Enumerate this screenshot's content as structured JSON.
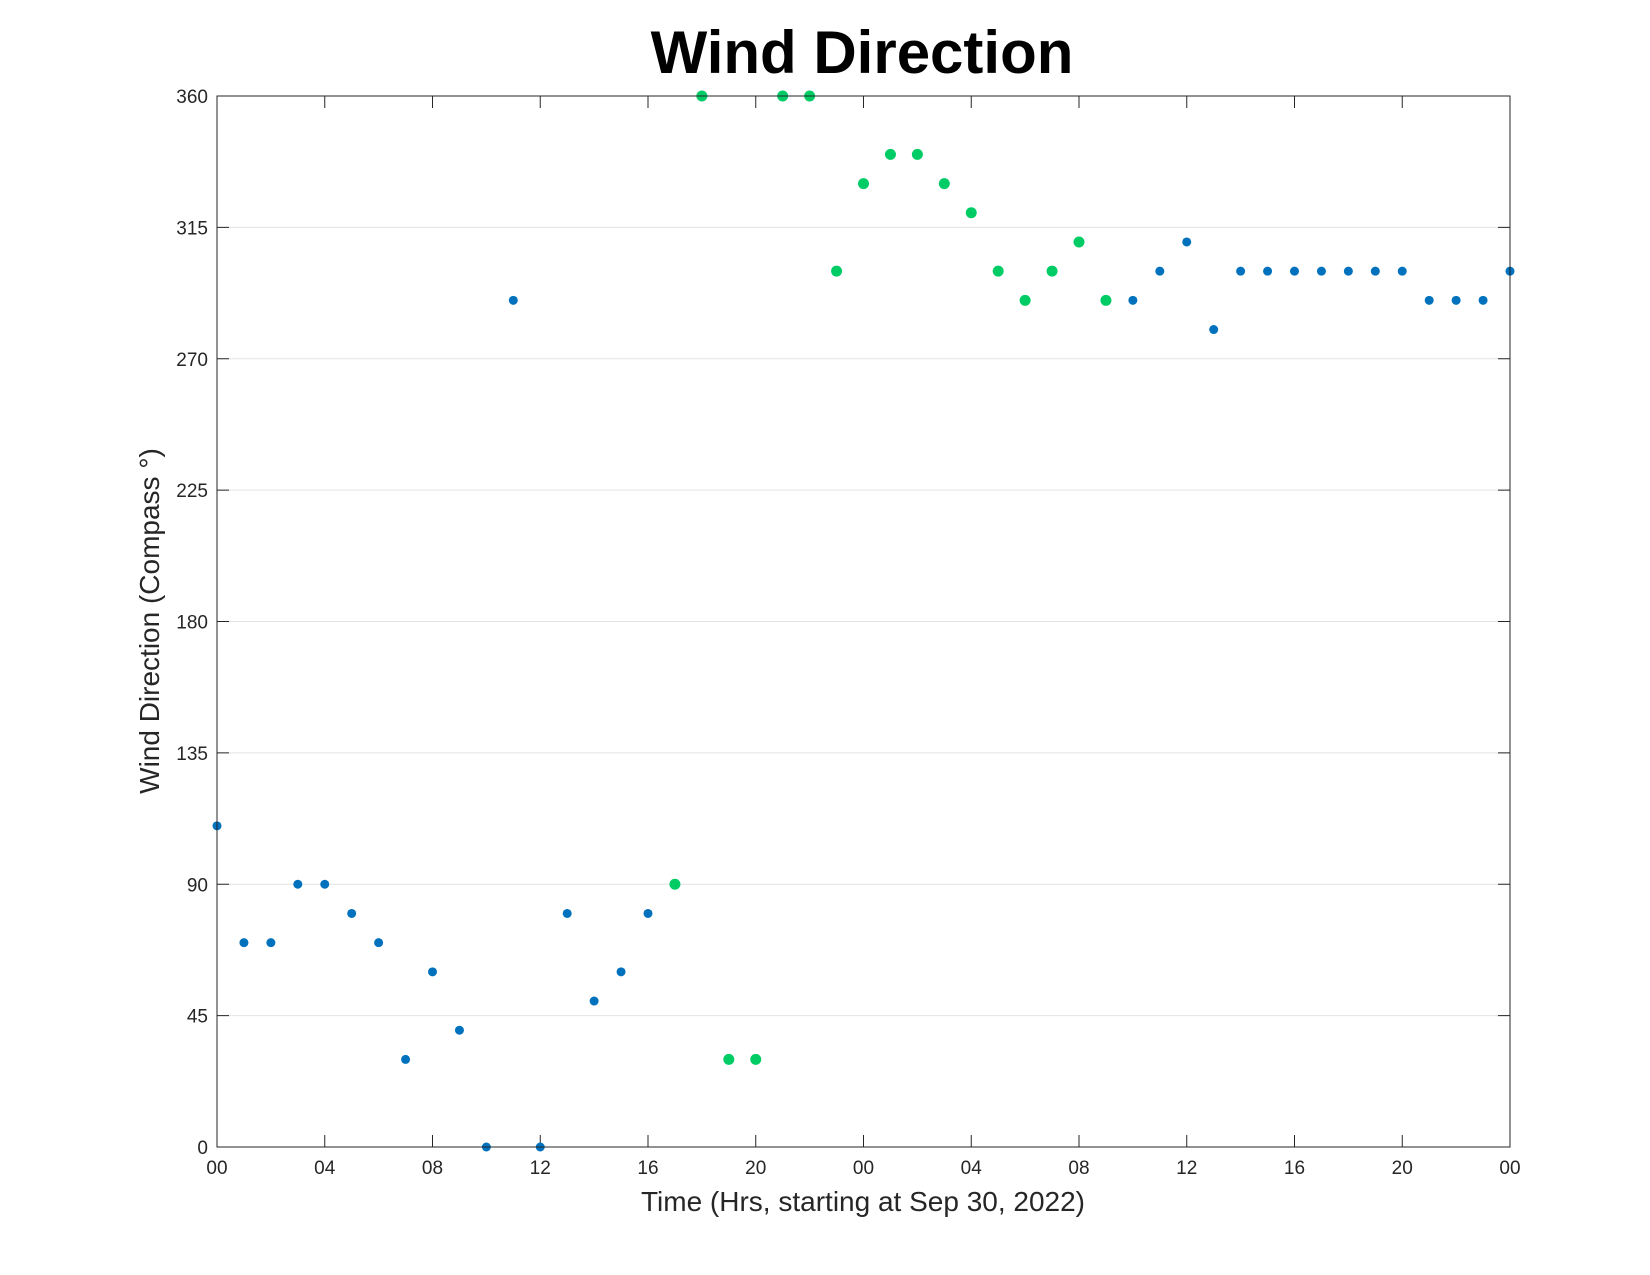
{
  "chart_data": {
    "type": "scatter",
    "title": "Wind Direction",
    "xlabel": "Time (Hrs, starting at Sep 30, 2022)",
    "ylabel": "Wind Direction (Compass °)",
    "ylim": [
      0,
      360
    ],
    "yticks": [
      0,
      45,
      90,
      135,
      180,
      225,
      270,
      315,
      360
    ],
    "xlim": [
      "2022-09-30 00:00",
      "2022-10-02 00:00"
    ],
    "x_ticks": [
      {
        "time": "2022-09-30 00:00",
        "label": "00"
      },
      {
        "time": "2022-09-30 04:00",
        "label": "04"
      },
      {
        "time": "2022-09-30 08:00",
        "label": "08"
      },
      {
        "time": "2022-09-30 12:00",
        "label": "12"
      },
      {
        "time": "2022-09-30 16:00",
        "label": "16"
      },
      {
        "time": "2022-09-30 20:00",
        "label": "20"
      },
      {
        "time": "2022-10-01 00:00",
        "label": "00"
      },
      {
        "time": "2022-10-01 04:00",
        "label": "04"
      },
      {
        "time": "2022-10-01 08:00",
        "label": "08"
      },
      {
        "time": "2022-10-01 12:00",
        "label": "12"
      },
      {
        "time": "2022-10-01 16:00",
        "label": "16"
      },
      {
        "time": "2022-10-01 20:00",
        "label": "20"
      },
      {
        "time": "2022-10-02 00:00",
        "label": "00"
      }
    ],
    "grid": "horizontal",
    "series": [
      {
        "color": "#0072BD",
        "points": [
          {
            "x": "2022-09-30 00:00",
            "y": 110
          },
          {
            "x": "2022-09-30 01:00",
            "y": 70
          },
          {
            "x": "2022-09-30 02:00",
            "y": 70
          },
          {
            "x": "2022-09-30 03:00",
            "y": 90
          },
          {
            "x": "2022-09-30 04:00",
            "y": 90
          },
          {
            "x": "2022-09-30 05:00",
            "y": 80
          },
          {
            "x": "2022-09-30 06:00",
            "y": 70
          },
          {
            "x": "2022-09-30 07:00",
            "y": 30
          },
          {
            "x": "2022-09-30 08:00",
            "y": 60
          },
          {
            "x": "2022-09-30 09:00",
            "y": 40
          },
          {
            "x": "2022-09-30 10:00",
            "y": 0
          },
          {
            "x": "2022-09-30 11:00",
            "y": 290
          },
          {
            "x": "2022-09-30 12:00",
            "y": 0
          },
          {
            "x": "2022-09-30 13:00",
            "y": 80
          },
          {
            "x": "2022-09-30 14:00",
            "y": 50
          },
          {
            "x": "2022-09-30 15:00",
            "y": 60
          },
          {
            "x": "2022-09-30 16:00",
            "y": 80
          },
          {
            "x": "2022-10-01 10:00",
            "y": 290
          },
          {
            "x": "2022-10-01 11:00",
            "y": 300
          },
          {
            "x": "2022-10-01 12:00",
            "y": 310
          },
          {
            "x": "2022-10-01 13:00",
            "y": 280
          },
          {
            "x": "2022-10-01 14:00",
            "y": 300
          },
          {
            "x": "2022-10-01 15:00",
            "y": 300
          },
          {
            "x": "2022-10-01 16:00",
            "y": 300
          },
          {
            "x": "2022-10-01 17:00",
            "y": 300
          },
          {
            "x": "2022-10-01 18:00",
            "y": 300
          },
          {
            "x": "2022-10-01 19:00",
            "y": 300
          },
          {
            "x": "2022-10-01 20:00",
            "y": 300
          },
          {
            "x": "2022-10-01 21:00",
            "y": 290
          },
          {
            "x": "2022-10-01 22:00",
            "y": 290
          },
          {
            "x": "2022-10-01 23:00",
            "y": 290
          },
          {
            "x": "2022-10-02 00:00",
            "y": 300
          }
        ]
      },
      {
        "color": "#00CC66",
        "points": [
          {
            "x": "2022-09-30 17:00",
            "y": 90
          },
          {
            "x": "2022-09-30 18:00",
            "y": 360
          },
          {
            "x": "2022-09-30 19:00",
            "y": 30
          },
          {
            "x": "2022-09-30 20:00",
            "y": 30
          },
          {
            "x": "2022-09-30 21:00",
            "y": 360
          },
          {
            "x": "2022-09-30 22:00",
            "y": 360
          },
          {
            "x": "2022-09-30 23:00",
            "y": 300
          },
          {
            "x": "2022-10-01 00:00",
            "y": 330
          },
          {
            "x": "2022-10-01 01:00",
            "y": 340
          },
          {
            "x": "2022-10-01 02:00",
            "y": 340
          },
          {
            "x": "2022-10-01 03:00",
            "y": 330
          },
          {
            "x": "2022-10-01 04:00",
            "y": 320
          },
          {
            "x": "2022-10-01 05:00",
            "y": 300
          },
          {
            "x": "2022-10-01 06:00",
            "y": 290
          },
          {
            "x": "2022-10-01 07:00",
            "y": 300
          },
          {
            "x": "2022-10-01 08:00",
            "y": 310
          },
          {
            "x": "2022-10-01 09:00",
            "y": 290
          }
        ]
      }
    ]
  }
}
